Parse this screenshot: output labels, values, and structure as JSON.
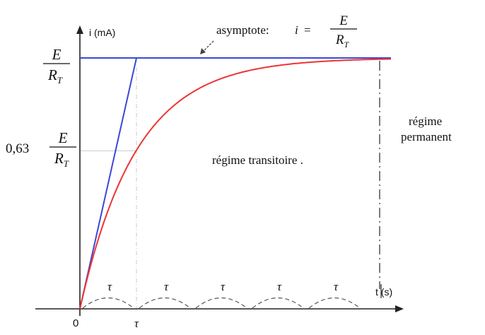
{
  "chart_data": {
    "type": "line",
    "title": "",
    "ylabel": "i (mA)",
    "xlabel": "t (s)",
    "origin_label": "0",
    "x_unit": "τ",
    "xlim": [
      0,
      5.55
    ],
    "ylim": [
      0,
      1.1
    ],
    "grid": false,
    "tau_marks": [
      "τ",
      "τ",
      "τ",
      "τ",
      "τ"
    ],
    "tau_tick_label": "τ",
    "asymptote": {
      "prefix": "asymptote:",
      "i": "i",
      "equals": "=",
      "num": "E",
      "den": "R",
      "den_sub": "T"
    },
    "y_labels": {
      "top": {
        "num": "E",
        "den": "R",
        "den_sub": "T"
      },
      "mid": {
        "coef": "0,63",
        "num": "E",
        "den": "R",
        "den_sub": "T"
      }
    },
    "annotations": {
      "transitoire": "régime transitoire .",
      "permanent_line1": "régime",
      "permanent_line2": "permanent"
    },
    "series": [
      {
        "type": "exponential",
        "color": "#ee3333",
        "values": "i = (E/R_T)(1 − e^(−t/τ))"
      },
      {
        "type": "asymptote",
        "color": "#3b48d6",
        "y": 1
      },
      {
        "type": "tangent",
        "color": "#3b48d6",
        "x": [
          0,
          1
        ],
        "y": [
          0,
          1
        ]
      }
    ],
    "mid_level": 0.63,
    "transition_x": 5.3
  }
}
